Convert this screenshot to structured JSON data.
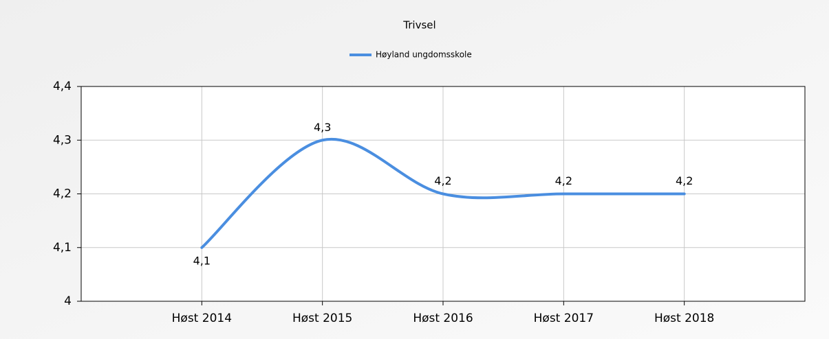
{
  "chart_data": {
    "type": "line",
    "title": "Trivsel",
    "categories": [
      "Høst 2014",
      "Høst 2015",
      "Høst 2016",
      "Høst 2017",
      "Høst 2018"
    ],
    "series": [
      {
        "name": "Høyland ungdomsskole",
        "color": "#4a8ee0",
        "values": [
          4.1,
          4.3,
          4.2,
          4.2,
          4.2
        ],
        "value_labels": [
          "4,1",
          "4,3",
          "4,2",
          "4,2",
          "4,2"
        ]
      }
    ],
    "ylim": [
      4,
      4.4
    ],
    "yticks": [
      4,
      {
        "value": 4.1,
        "label": "4,1"
      },
      {
        "value": 4.2,
        "label": "4,2"
      },
      {
        "value": 4.3,
        "label": "4,3"
      },
      {
        "value": 4.4,
        "label": "4,4"
      }
    ],
    "grid": true,
    "smooth": true,
    "legend": "top"
  }
}
